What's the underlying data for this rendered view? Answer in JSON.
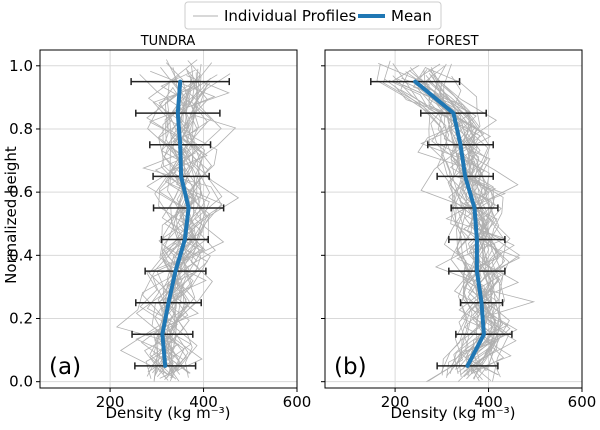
{
  "chart_data": {
    "type": "line",
    "legend": {
      "placement": "top-center",
      "entries": [
        {
          "name": "Individual Profiles",
          "color": "#b0b0b0"
        },
        {
          "name": "Mean",
          "color": "#1f77b4"
        }
      ]
    },
    "ylabel": "Normalized height",
    "ylim": [
      -0.02,
      1.05
    ],
    "yticks": [
      "0.0",
      "0.2",
      "0.4",
      "0.6",
      "0.8",
      "1.0"
    ],
    "grid": true,
    "panels": [
      {
        "title": "TUNDRA",
        "letter": "(a)",
        "xlabel": "Density (kg m⁻³)",
        "xlim": [
          50,
          600
        ],
        "xticks": [
          "200",
          "400",
          "600"
        ],
        "mean": {
          "y": [
            0.05,
            0.15,
            0.25,
            0.35,
            0.45,
            0.55,
            0.65,
            0.75,
            0.85,
            0.95
          ],
          "x": [
            318,
            312,
            325,
            340,
            360,
            368,
            352,
            350,
            345,
            350
          ]
        },
        "error_half_width": [
          65,
          65,
          70,
          65,
          50,
          75,
          60,
          65,
          90,
          105
        ],
        "n_profiles": 35
      },
      {
        "title": "FOREST",
        "letter": "(b)",
        "xlabel": "Density (kg m⁻³)",
        "xlim": [
          50,
          600
        ],
        "xticks": [
          "200",
          "400",
          "600"
        ],
        "mean": {
          "y": [
            0.05,
            0.15,
            0.25,
            0.35,
            0.45,
            0.55,
            0.65,
            0.75,
            0.85,
            0.95
          ],
          "x": [
            355,
            390,
            385,
            375,
            375,
            370,
            350,
            340,
            325,
            243
          ]
        },
        "error_half_width": [
          65,
          60,
          45,
          60,
          60,
          50,
          60,
          70,
          70,
          95
        ],
        "n_profiles": 40
      }
    ]
  }
}
